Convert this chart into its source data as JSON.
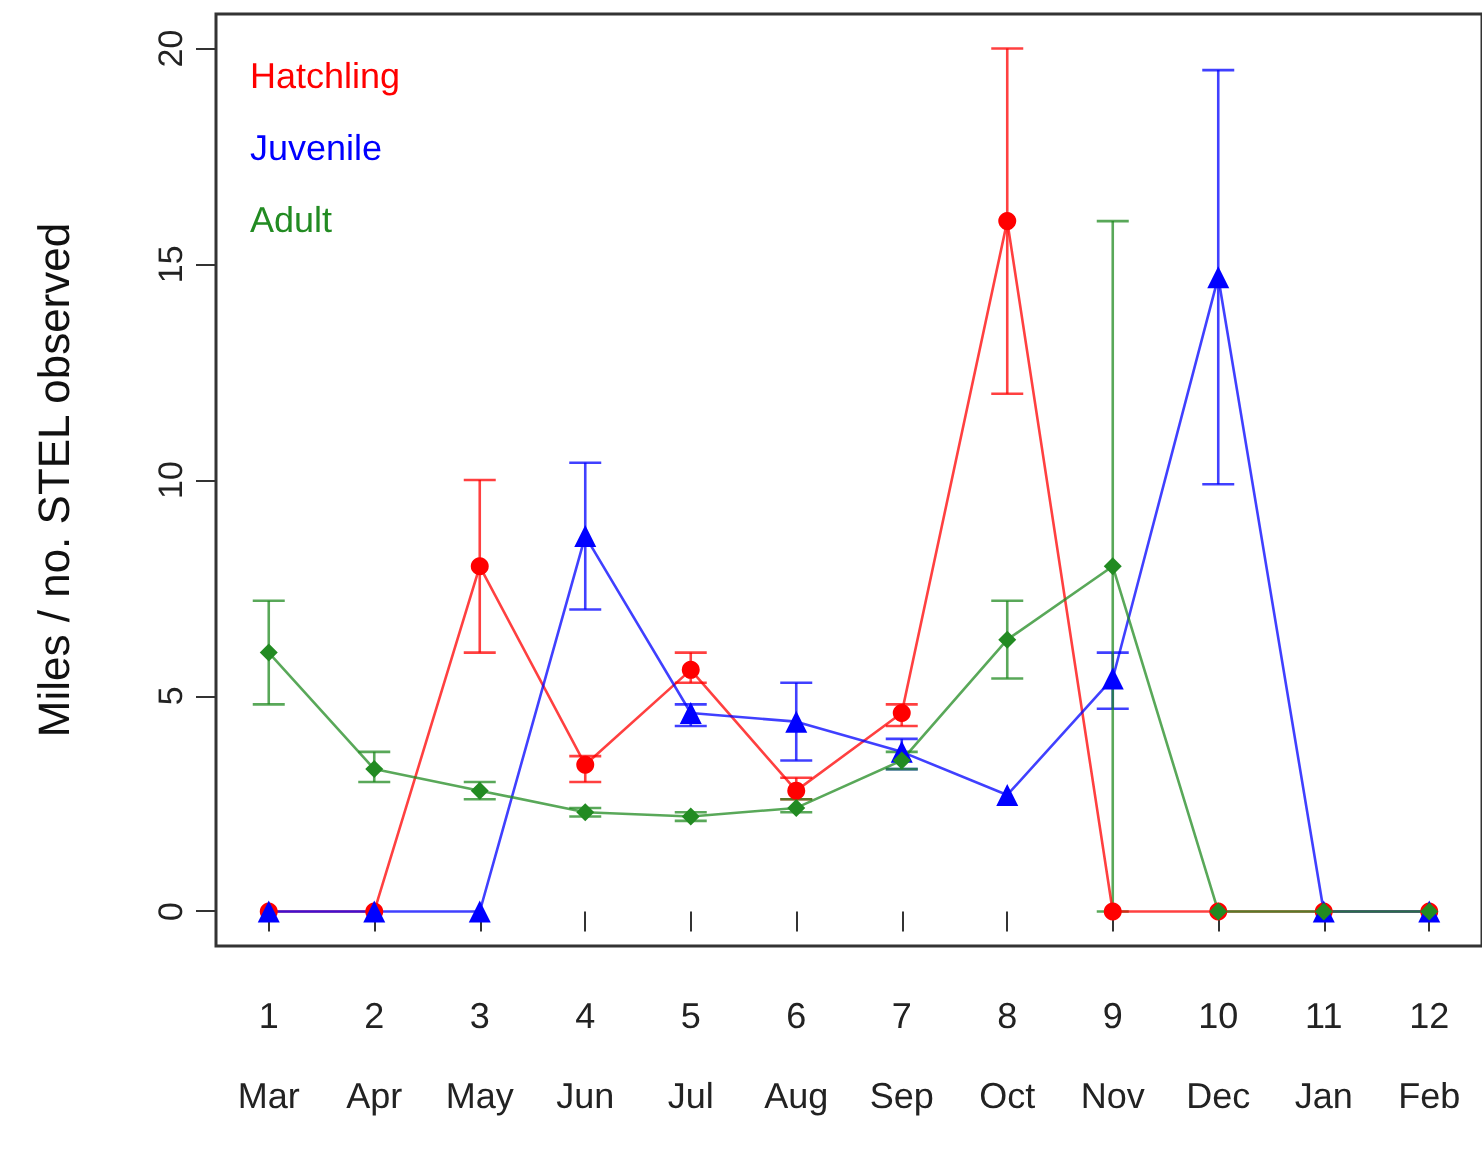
{
  "chart_data": {
    "type": "line",
    "ylabel": "Miles / no. STEL observed",
    "categories": [
      "1\nMar",
      "2\nApr",
      "3\nMay",
      "4\nJun",
      "5\nJul",
      "6\nAug",
      "7\nSep",
      "8\nOct",
      "9\nNov",
      "10\nDec",
      "11\nJan",
      "12\nFeb"
    ],
    "ylim": [
      -0.8,
      20.8
    ],
    "yticks": [
      0,
      5,
      10,
      15,
      20
    ],
    "grid": false,
    "legend": "top left",
    "line_style": "solid",
    "series": [
      {
        "name": "Hatchling",
        "color": "#ff0000",
        "marker": "circle",
        "values": [
          0,
          0,
          8.0,
          3.4,
          5.6,
          2.8,
          4.6,
          16.0,
          0,
          0,
          0,
          0
        ],
        "errors": [
          null,
          null,
          [
            6.0,
            10.0
          ],
          [
            3.0,
            3.6
          ],
          [
            5.3,
            6.0
          ],
          [
            2.6,
            3.1
          ],
          [
            4.3,
            4.8
          ],
          [
            12.0,
            20.0
          ],
          null,
          null,
          null,
          null
        ]
      },
      {
        "name": "Juvenile",
        "color": "#0000ff",
        "marker": "triangle",
        "values": [
          0,
          0,
          0,
          8.7,
          4.6,
          4.4,
          3.7,
          2.7,
          5.4,
          14.7,
          0,
          0
        ],
        "errors": [
          null,
          null,
          null,
          [
            7.0,
            10.4
          ],
          [
            4.3,
            4.8
          ],
          [
            3.5,
            5.3
          ],
          [
            3.3,
            4.0
          ],
          null,
          [
            4.7,
            6.0
          ],
          [
            9.9,
            19.5
          ],
          null,
          null
        ]
      },
      {
        "name": "Adult",
        "color": "#228b22",
        "marker": "diamond",
        "values": [
          6.0,
          3.3,
          2.8,
          2.3,
          2.2,
          2.4,
          3.5,
          6.3,
          8.0,
          0,
          0,
          0
        ],
        "errors": [
          [
            4.8,
            7.2
          ],
          [
            3.0,
            3.7
          ],
          [
            2.6,
            3.0
          ],
          [
            2.2,
            2.4
          ],
          [
            2.1,
            2.3
          ],
          [
            2.3,
            2.6
          ],
          [
            3.3,
            3.7
          ],
          [
            5.4,
            7.2
          ],
          [
            0,
            16.0
          ],
          null,
          null,
          null
        ]
      }
    ]
  }
}
